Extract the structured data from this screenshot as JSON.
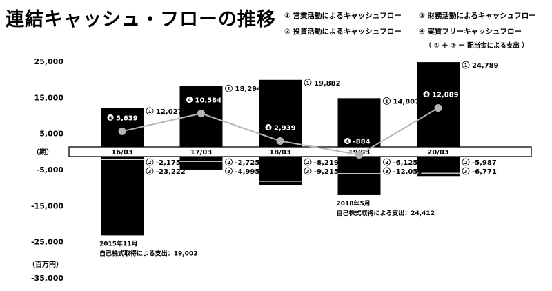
{
  "title": "連結キャッシュ・フローの推移",
  "legend": [
    {
      "id": "1",
      "label": "営業活動によるキャッシュフロー"
    },
    {
      "id": "3",
      "label": "財務活動によるキャッシュフロー"
    },
    {
      "id": "2",
      "label": "投資活動によるキャッシュフロー"
    },
    {
      "id": "4",
      "label": "実質フリーキャッシュフロー"
    }
  ],
  "legend_note": "（ ① ＋ ② ー 配当金による支出 ）",
  "axis_period_label": "（期）",
  "axis_unit_label": "（百万円）",
  "chart_data": {
    "type": "bar",
    "categories": [
      "16/03",
      "17/03",
      "18/03",
      "19/03",
      "20/03"
    ],
    "ylim": [
      -35000,
      25000
    ],
    "yticks": [
      25000,
      15000,
      5000,
      -5000,
      -15000,
      -25000,
      -35000
    ],
    "ytick_labels": [
      "25,000",
      "15,000",
      "5,000",
      "-5,000",
      "-15,000",
      "-25,000",
      "-35,000"
    ],
    "series": [
      {
        "name": "営業活動によるキャッシュフロー",
        "values": [
          12027,
          18294,
          19882,
          14807,
          24789
        ]
      },
      {
        "name": "投資活動によるキャッシュフロー",
        "values": [
          -2175,
          -2725,
          -8219,
          -6125,
          -5987
        ]
      },
      {
        "name": "財務活動によるキャッシュフロー",
        "values": [
          -23222,
          -4995,
          -9215,
          -12059,
          -6771
        ]
      },
      {
        "name": "実質フリーキャッシュフロー",
        "values": [
          5639,
          10584,
          2939,
          -884,
          12089
        ]
      }
    ],
    "value_labels": {
      "op": [
        "12,027",
        "18,294",
        "19,882",
        "14,807",
        "24,789"
      ],
      "inv": [
        "-2,175",
        "-2,725",
        "-8,219",
        "-6,125",
        "-5,987"
      ],
      "fin": [
        "-23,222",
        "-4,995",
        "-9,215",
        "-12,059",
        "-6,771"
      ],
      "fcf": [
        "5,639",
        "10,584",
        "2,939",
        "-884",
        "12,089"
      ]
    },
    "annotations": [
      {
        "category": "16/03",
        "lines": [
          "2015年11月",
          "自己株式取得による支出：19,002"
        ]
      },
      {
        "category": "19/03",
        "lines": [
          "2018年5月",
          "自己株式取得による支出：24,412"
        ]
      }
    ]
  }
}
